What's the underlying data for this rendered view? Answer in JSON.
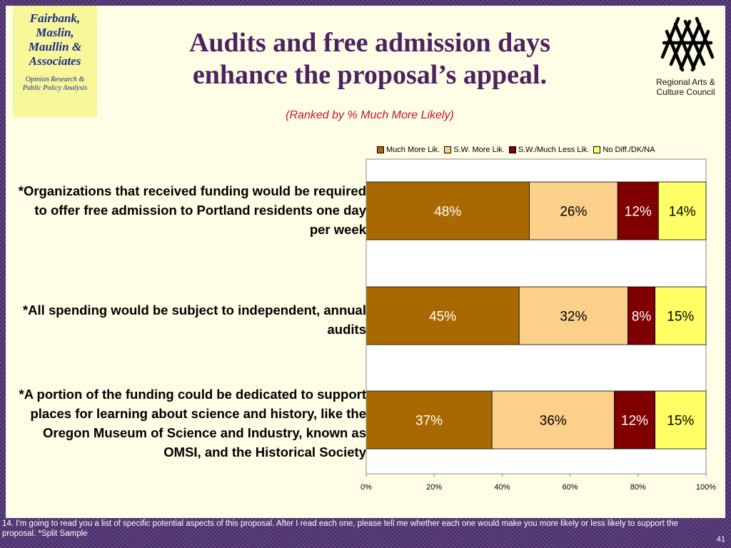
{
  "firm": {
    "name": "Fairbank,\nMaslin,\nMaullin &\nAssociates",
    "tagline": "Opinion Research &\nPublic Policy Analysis"
  },
  "council": {
    "name": "Regional Arts &\nCulture Council"
  },
  "footnote": "14. I'm going to read you a list of specific potential aspects of this proposal.  After I read each one, please tell me whether each one would make you more likely or less likely to support the proposal.  *Split Sample",
  "page_number": "41",
  "chart_data": {
    "type": "bar",
    "orientation": "horizontal",
    "stacked": true,
    "title": "Audits and free admission days\nenhance the proposal’s appeal.",
    "subtitle": "(Ranked by % Much More Likely)",
    "categories": [
      "*Organizations that received funding would be required to offer free admission to Portland residents one day per week",
      "*All spending would be subject to independent, annual audits",
      "*A portion of the funding could be dedicated to support places for learning about science and history, like the Oregon Museum of Science and Industry, known as OMSI, and the Historical Society"
    ],
    "series": [
      {
        "name": "Much More Lik.",
        "color": "#a86a00",
        "label_color": "#ffffff",
        "values": [
          48,
          45,
          37
        ],
        "labels": [
          "48%",
          "45%",
          "37%"
        ]
      },
      {
        "name": "S.W. More Lik.",
        "color": "#fad08a",
        "label_color": "#000000",
        "values": [
          26,
          32,
          36
        ],
        "labels": [
          "26%",
          "32%",
          "36%"
        ]
      },
      {
        "name": "S.W./Much Less Lik.",
        "color": "#800000",
        "label_color": "#ffffff",
        "values": [
          12,
          8,
          12
        ],
        "labels": [
          "12%",
          "8%",
          "12%"
        ]
      },
      {
        "name": "No Diff./DK/NA",
        "color": "#ffff66",
        "label_color": "#000000",
        "values": [
          14,
          15,
          15
        ],
        "labels": [
          "14%",
          "15%",
          "15%"
        ]
      }
    ],
    "xlim": [
      0,
      100
    ],
    "xticks": [
      "0%",
      "20%",
      "40%",
      "60%",
      "80%",
      "100%"
    ],
    "grid": false,
    "legend": "top"
  }
}
